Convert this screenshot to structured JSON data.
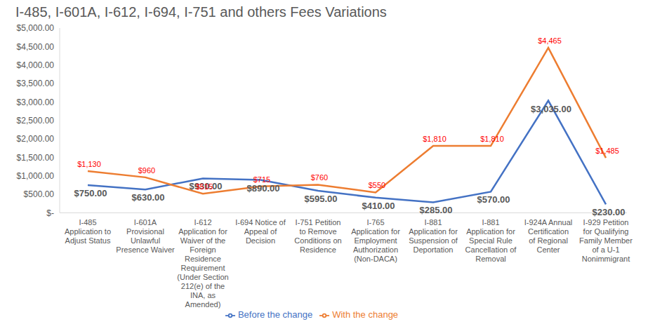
{
  "chart_data": {
    "type": "line",
    "title": "I-485, I-601A, I-612, I-694, I-751 and others Fees Variations",
    "categories": [
      "I-485 Application to Adjust Status",
      "I-601A Provisional Unlawful Presence Waiver",
      "I-612 Application for Waiver of the Foreign Residence Requirement (Under Section 212(e) of the INA, as Amended)",
      "I-694 Notice of Appeal of Decision",
      "I-751 Petition to Remove Conditions on Residence",
      "I-765 Application for Employment Authorization (Non-DACA)",
      "I-881 Application for Suspension of Deportation",
      "I-881 Application for Special Rule Cancellation of Removal",
      "I-924A Annual Certification of Regional Center",
      "I-929 Petition for Qualifying Family Member of a U-1 Nonimmigrant"
    ],
    "series": [
      {
        "name": "Before the change",
        "color": "#4472c4",
        "values": [
          750,
          630,
          930,
          890,
          595,
          410,
          285,
          570,
          3035,
          230
        ],
        "value_labels": [
          "$750.00",
          "$630.00",
          "$930.00",
          "$890.00",
          "$595.00",
          "$410.00",
          "$285.00",
          "$570.00",
          "$3,035.00",
          "$230.00"
        ]
      },
      {
        "name": "With the change",
        "color": "#ed7d31",
        "values": [
          1130,
          960,
          515,
          715,
          760,
          550,
          1810,
          1810,
          4465,
          1485
        ],
        "value_labels": [
          "$1,130",
          "$960",
          "$515",
          "$715",
          "$760",
          "$550",
          "$1,810",
          "$1,810",
          "$4,465",
          "$1,485"
        ]
      }
    ],
    "ylim": [
      0,
      5000
    ],
    "yticks": [
      {
        "value": 0,
        "label": "$-"
      },
      {
        "value": 500,
        "label": "$500.00"
      },
      {
        "value": 1000,
        "label": "$1,000.00"
      },
      {
        "value": 1500,
        "label": "$1,500.00"
      },
      {
        "value": 2000,
        "label": "$2,000.00"
      },
      {
        "value": 2500,
        "label": "$2,500.00"
      },
      {
        "value": 3000,
        "label": "$3,000.00"
      },
      {
        "value": 3500,
        "label": "$3,500.00"
      },
      {
        "value": 4000,
        "label": "$4,000.00"
      },
      {
        "value": 4500,
        "label": "$4,500.00"
      },
      {
        "value": 5000,
        "label": "$5,000.00"
      }
    ],
    "grid": false,
    "legend": "bottom",
    "data_labels": true
  }
}
